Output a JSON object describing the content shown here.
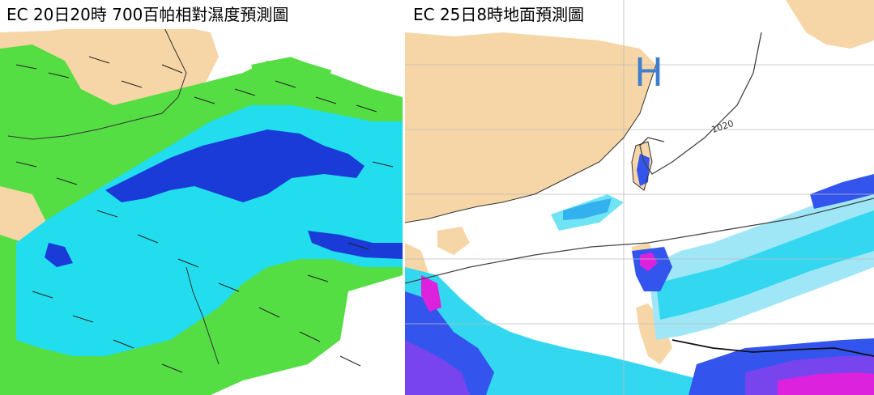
{
  "left_panel": {
    "title": "EC 20日20時 700百帕相對濕度預測圖"
  },
  "right_panel": {
    "title": "EC 25日8時地面預測圖",
    "high_pressure_marker": "H",
    "isobar_label": "1020"
  },
  "colors": {
    "land": "#f6d6a6",
    "humidity_green": "#55dd44",
    "humidity_cyan": "#22ddee",
    "humidity_blue": "#1a3bd8",
    "precip_light_blue": "#9fe7f7",
    "precip_cyan": "#33d8f0",
    "precip_blue": "#3355ee",
    "precip_violet": "#7744ee",
    "precip_magenta": "#dd22dd",
    "h_marker": "#3f7fd0"
  }
}
